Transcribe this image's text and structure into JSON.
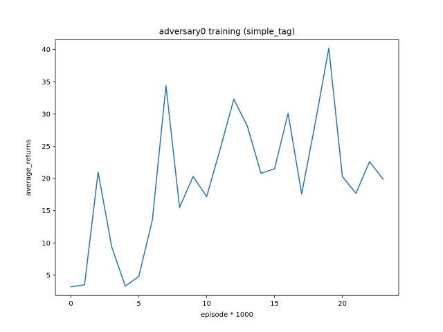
{
  "chart_data": {
    "type": "line",
    "title": "adversary0 training (simple_tag)",
    "xlabel": "episode * 1000",
    "ylabel": "average_returns",
    "xlim": [
      -1.15,
      24.15
    ],
    "ylim": [
      1.85,
      41.5
    ],
    "xticks": [
      0,
      5,
      10,
      15,
      20
    ],
    "yticks": [
      5,
      10,
      15,
      20,
      25,
      30,
      35,
      40
    ],
    "grid": false,
    "legend": "none",
    "series": [
      {
        "color": "#1f77b4",
        "x": [
          0,
          1,
          2,
          3,
          4,
          5,
          6,
          7,
          8,
          9,
          10,
          11,
          12,
          13,
          14,
          15,
          16,
          17,
          18,
          19,
          20,
          21,
          22,
          23
        ],
        "values": [
          3.2,
          3.5,
          21.0,
          9.4,
          3.3,
          4.8,
          13.6,
          34.4,
          15.5,
          20.3,
          17.2,
          24.6,
          32.3,
          28.1,
          20.8,
          21.5,
          30.1,
          17.6,
          28.6,
          40.2,
          20.3,
          17.7,
          22.6,
          19.9
        ]
      }
    ]
  }
}
